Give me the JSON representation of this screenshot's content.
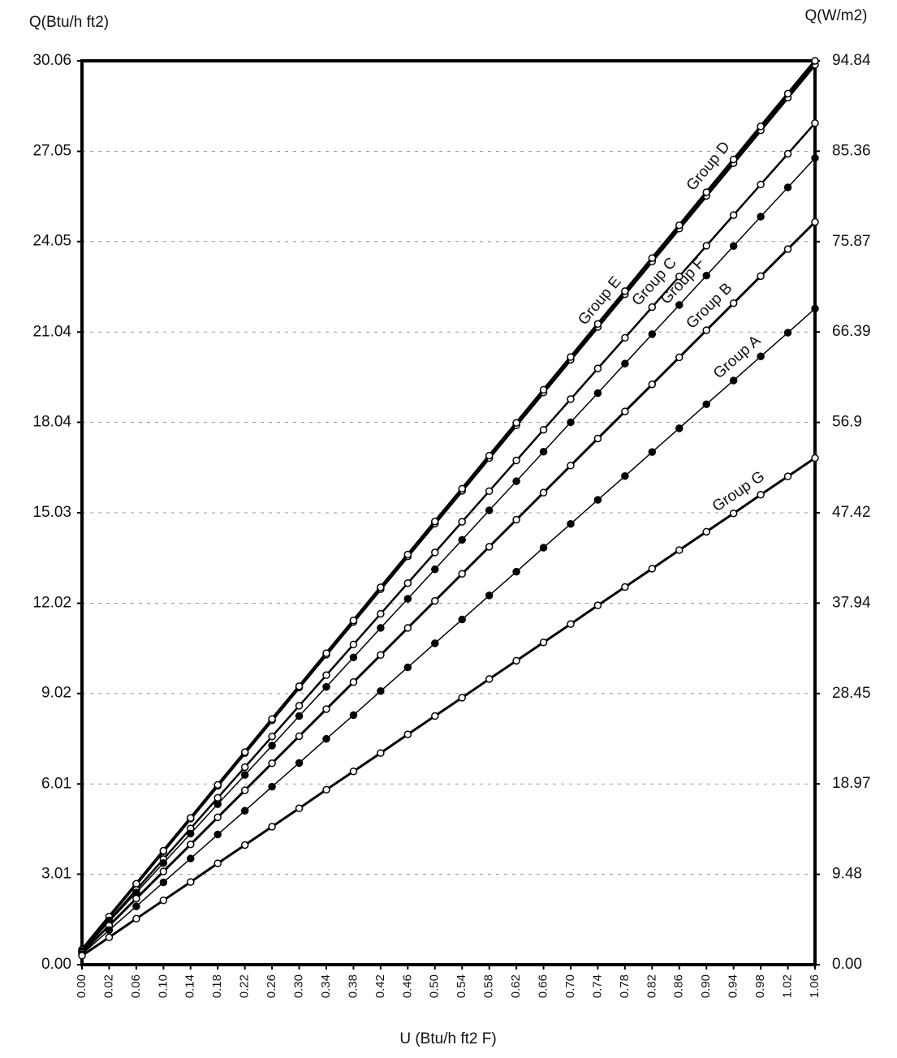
{
  "chart_data": {
    "type": "line",
    "ylabel": "Q(Btu/h ft2)",
    "y2label": "Q(W/m2)",
    "xlabel": "U (Btu/h ft2 F)",
    "categories": [
      "0.00",
      "0.02",
      "0.06",
      "0.10",
      "0.14",
      "0.18",
      "0.22",
      "0.26",
      "0.30",
      "0.34",
      "0.38",
      "0.42",
      "0.46",
      "0.50",
      "0.54",
      "0.58",
      "0.62",
      "0.66",
      "0.70",
      "0.74",
      "0.78",
      "0.82",
      "0.86",
      "0.90",
      "0.94",
      "0.98",
      "1.02",
      "1.06"
    ],
    "ylim": [
      0,
      30.06
    ],
    "yticks": [
      {
        "value": 0,
        "label": "0.00"
      },
      3.01,
      6.01,
      9.02,
      12.02,
      15.03,
      18.04,
      21.04,
      24.05,
      27.05,
      30.06
    ],
    "y2lim": [
      0,
      94.84
    ],
    "y2ticks": [
      {
        "value": 0,
        "label": "0.00"
      },
      9.48,
      18.97,
      28.45,
      37.94,
      47.42,
      56.9,
      66.39,
      75.87,
      85.36,
      94.84
    ],
    "grid": true,
    "series": [
      {
        "name": "Group E",
        "color": "#000000",
        "marker": "open",
        "line_width": 3.5,
        "values": [
          0.5,
          1.59,
          2.68,
          3.77,
          4.86,
          5.95,
          7.04,
          8.13,
          9.22,
          10.31,
          11.4,
          12.49,
          13.58,
          14.67,
          15.76,
          16.85,
          17.94,
          19.03,
          20.12,
          21.21,
          22.3,
          23.39,
          24.48,
          25.57,
          26.66,
          27.75,
          28.84,
          29.93
        ]
      },
      {
        "name": "Group D",
        "color": "#000000",
        "marker": "open",
        "line_width": 3.5,
        "values": [
          0.5,
          1.6,
          2.69,
          3.79,
          4.88,
          5.98,
          7.07,
          8.17,
          9.26,
          10.36,
          11.45,
          12.55,
          13.64,
          14.74,
          15.83,
          16.93,
          18.02,
          19.12,
          20.21,
          21.31,
          22.4,
          23.5,
          24.59,
          25.69,
          26.78,
          27.88,
          28.97,
          30.06
        ]
      },
      {
        "name": "Group C",
        "color": "#000000",
        "marker": "open",
        "line_width": 2.5,
        "values": [
          0.45,
          1.47,
          2.49,
          3.51,
          4.53,
          5.55,
          6.57,
          7.59,
          8.61,
          9.63,
          10.65,
          11.67,
          12.69,
          13.71,
          14.73,
          15.75,
          16.77,
          17.79,
          18.81,
          19.83,
          20.85,
          21.87,
          22.89,
          23.91,
          24.93,
          25.95,
          26.97,
          27.99
        ]
      },
      {
        "name": "Group F",
        "color": "#000000",
        "marker": "filled",
        "line_width": 1.5,
        "values": [
          0.45,
          1.43,
          2.4,
          3.38,
          4.36,
          5.34,
          6.31,
          7.29,
          8.27,
          9.24,
          10.22,
          11.2,
          12.17,
          13.15,
          14.13,
          15.11,
          16.08,
          17.06,
          18.04,
          19.01,
          19.99,
          20.97,
          21.94,
          22.92,
          23.9,
          24.88,
          25.85,
          26.83
        ]
      },
      {
        "name": "Group B",
        "color": "#000000",
        "marker": "open",
        "line_width": 3,
        "values": [
          0.4,
          1.3,
          2.2,
          3.1,
          4,
          4.9,
          5.8,
          6.7,
          7.6,
          8.5,
          9.4,
          10.3,
          11.2,
          12.1,
          13,
          13.9,
          14.8,
          15.7,
          16.6,
          17.5,
          18.4,
          19.3,
          20.2,
          21.1,
          22,
          22.9,
          23.8,
          24.7
        ]
      },
      {
        "name": "Group A",
        "color": "#000000",
        "marker": "filled",
        "line_width": 1.5,
        "values": [
          0.35,
          1.15,
          1.94,
          2.74,
          3.53,
          4.33,
          5.12,
          5.92,
          6.71,
          7.51,
          8.3,
          9.1,
          9.89,
          10.69,
          11.48,
          12.28,
          13.07,
          13.87,
          14.66,
          15.46,
          16.25,
          17.05,
          17.84,
          18.64,
          19.43,
          20.23,
          21.02,
          21.82
        ]
      },
      {
        "name": "Group G",
        "color": "#000000",
        "marker": "open",
        "line_width": 3,
        "values": [
          0.3,
          0.91,
          1.53,
          2.14,
          2.75,
          3.37,
          3.98,
          4.59,
          5.2,
          5.82,
          6.43,
          7.04,
          7.66,
          8.27,
          8.88,
          9.5,
          10.11,
          10.72,
          11.33,
          11.95,
          12.56,
          13.17,
          13.79,
          14.4,
          15.01,
          15.63,
          16.24,
          16.85
        ]
      }
    ]
  }
}
